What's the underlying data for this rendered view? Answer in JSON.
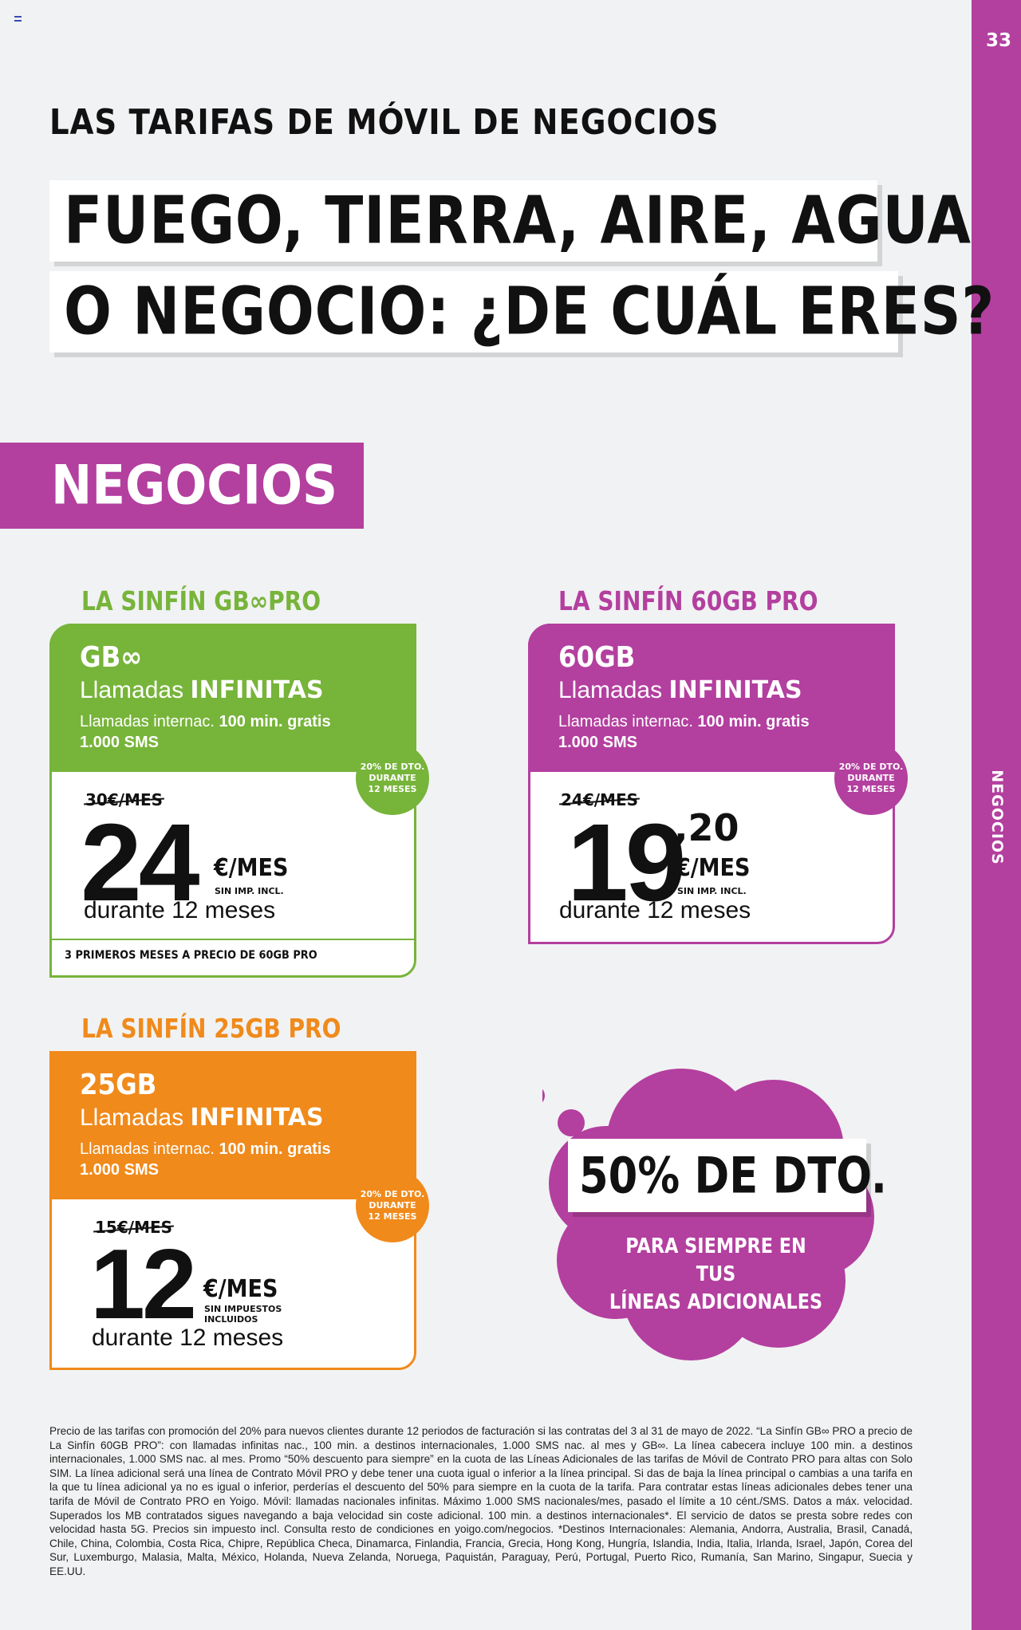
{
  "page": {
    "number": "33",
    "side_label": "NEGOCIOS"
  },
  "header": {
    "kicker": "LAS TARIFAS DE MÓVIL DE NEGOCIOS",
    "headline_line1": "FUEGO, TIERRA, AIRE, AGUA",
    "headline_line2": "O NEGOCIO: ¿DE CUÁL ERES?"
  },
  "section": {
    "title": "NEGOCIOS"
  },
  "colors": {
    "purple": "#b33f9f",
    "green": "#77b43a",
    "orange": "#f08a1b"
  },
  "plans": [
    {
      "title": "LA SINFÍN GB∞PRO",
      "data": "GB∞",
      "calls_prefix": "Llamadas",
      "calls_bold": "INFINITAS",
      "intl_prefix": "Llamadas internac.",
      "intl_bold": "100 min. gratis",
      "sms": "1.000 SMS",
      "old_price": "30€/MES",
      "price": "24",
      "cents": "",
      "unit": "€/MES",
      "tax_note": "SIN IMP. INCL.",
      "duration": "durante 12 meses",
      "footnote": "3 PRIMEROS MESES A PRECIO DE 60GB PRO",
      "badge": [
        "20% DE DTO.",
        "DURANTE",
        "12 MESES"
      ]
    },
    {
      "title": "LA SINFÍN 60GB PRO",
      "data": "60GB",
      "calls_prefix": "Llamadas",
      "calls_bold": "INFINITAS",
      "intl_prefix": "Llamadas internac.",
      "intl_bold": "100 min. gratis",
      "sms": "1.000 SMS",
      "old_price": "24€/MES",
      "price": "19",
      "cents": ",20",
      "unit": "€/MES",
      "tax_note": "SIN IMP. INCL.",
      "duration": "durante 12 meses",
      "badge": [
        "20% DE DTO.",
        "DURANTE",
        "12 MESES"
      ]
    },
    {
      "title": "LA SINFÍN 25GB PRO",
      "data": "25GB",
      "calls_prefix": "Llamadas",
      "calls_bold": "INFINITAS",
      "intl_prefix": "Llamadas internac.",
      "intl_bold": "100 min. gratis",
      "sms": "1.000 SMS",
      "old_price": "15€/MES",
      "price": "12",
      "cents": "",
      "unit": "€/MES",
      "tax_note_line1": "SIN IMPUESTOS",
      "tax_note_line2": "INCLUIDOS",
      "duration": "durante 12 meses",
      "badge": [
        "20% DE DTO.",
        "DURANTE",
        "12 MESES"
      ]
    }
  ],
  "promo": {
    "headline": "50% DE DTO.",
    "sub_line1": "PARA SIEMPRE EN TUS",
    "sub_line2": "LÍNEAS ADICIONALES"
  },
  "legal": "Precio de las tarifas con promoción del 20% para nuevos clientes durante 12 periodos de facturación si las contratas del 3 al 31 de mayo de 2022. “La Sinfín GB∞ PRO a precio de La Sinfín 60GB PRO”: con llamadas infinitas nac., 100 min. a destinos internacionales, 1.000 SMS nac. al mes y GB∞. La línea cabecera incluye 100 min. a destinos internacionales, 1.000 SMS nac. al mes. Promo “50% descuento para siempre” en la cuota de las Líneas Adicionales de las tarifas de Móvil de Contrato PRO para altas con Solo SIM. La línea adicional será una línea de Contrato Móvil PRO y debe tener una cuota igual o inferior a la línea principal. Si das de baja la línea principal o cambias a una tarifa en la que tu línea adicional ya no es igual o inferior, perderías el descuento del 50% para siempre en la cuota de la tarifa. Para contratar estas líneas adicionales debes tener una tarifa de Móvil de Contrato PRO en Yoigo. Móvil: llamadas nacionales infinitas. Máximo 1.000 SMS nacionales/mes, pasado el límite a 10 cént./SMS. Datos a máx. velocidad. Superados los MB contratados sigues navegando a baja velocidad sin coste adicional. 100 min. a destinos internacionales*. El servicio de datos se presta sobre redes con velocidad hasta 5G. Precios sin impuesto incl. Consulta resto de condiciones en yoigo.com/negocios. *Destinos Internacionales: Alemania, Andorra, Australia, Brasil, Canadá, Chile, China, Colombia, Costa Rica, Chipre, República Checa, Dinamarca, Finlandia, Francia, Grecia, Hong Kong, Hungría, Islandia, India, Italia, Irlanda, Israel, Japón, Corea del Sur, Luxemburgo, Malasia, Malta, México, Holanda, Nueva Zelanda, Noruega, Paquistán, Paraguay, Perú, Portugal, Puerto Rico, Rumanía, San Marino, Singapur, Suecia y EE.UU."
}
